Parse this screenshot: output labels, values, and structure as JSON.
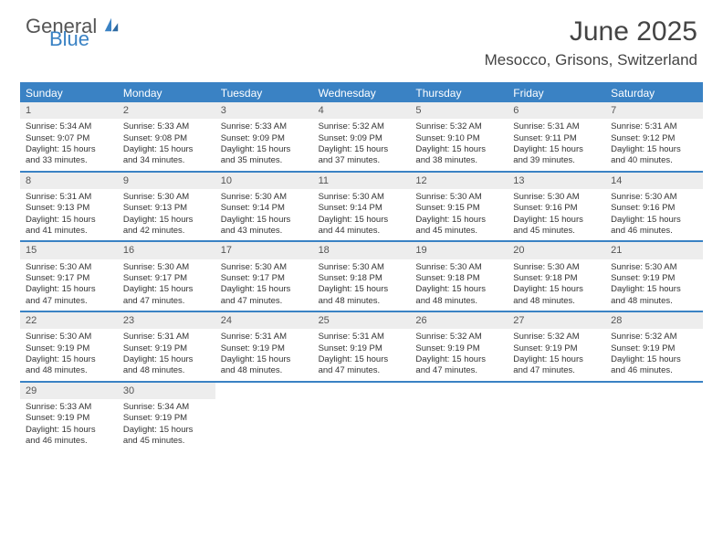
{
  "logo": {
    "general": "General",
    "blue": "Blue"
  },
  "title": "June 2025",
  "location": "Mesocco, Grisons, Switzerland",
  "colors": {
    "accent": "#3a82c4",
    "headerBg": "#3a82c4",
    "daynumBg": "#ededed",
    "text": "#333333",
    "titleText": "#444444"
  },
  "dayNames": [
    "Sunday",
    "Monday",
    "Tuesday",
    "Wednesday",
    "Thursday",
    "Friday",
    "Saturday"
  ],
  "weeks": [
    [
      {
        "n": "1",
        "sr": "5:34 AM",
        "ss": "9:07 PM",
        "dl": "15 hours and 33 minutes."
      },
      {
        "n": "2",
        "sr": "5:33 AM",
        "ss": "9:08 PM",
        "dl": "15 hours and 34 minutes."
      },
      {
        "n": "3",
        "sr": "5:33 AM",
        "ss": "9:09 PM",
        "dl": "15 hours and 35 minutes."
      },
      {
        "n": "4",
        "sr": "5:32 AM",
        "ss": "9:09 PM",
        "dl": "15 hours and 37 minutes."
      },
      {
        "n": "5",
        "sr": "5:32 AM",
        "ss": "9:10 PM",
        "dl": "15 hours and 38 minutes."
      },
      {
        "n": "6",
        "sr": "5:31 AM",
        "ss": "9:11 PM",
        "dl": "15 hours and 39 minutes."
      },
      {
        "n": "7",
        "sr": "5:31 AM",
        "ss": "9:12 PM",
        "dl": "15 hours and 40 minutes."
      }
    ],
    [
      {
        "n": "8",
        "sr": "5:31 AM",
        "ss": "9:13 PM",
        "dl": "15 hours and 41 minutes."
      },
      {
        "n": "9",
        "sr": "5:30 AM",
        "ss": "9:13 PM",
        "dl": "15 hours and 42 minutes."
      },
      {
        "n": "10",
        "sr": "5:30 AM",
        "ss": "9:14 PM",
        "dl": "15 hours and 43 minutes."
      },
      {
        "n": "11",
        "sr": "5:30 AM",
        "ss": "9:14 PM",
        "dl": "15 hours and 44 minutes."
      },
      {
        "n": "12",
        "sr": "5:30 AM",
        "ss": "9:15 PM",
        "dl": "15 hours and 45 minutes."
      },
      {
        "n": "13",
        "sr": "5:30 AM",
        "ss": "9:16 PM",
        "dl": "15 hours and 45 minutes."
      },
      {
        "n": "14",
        "sr": "5:30 AM",
        "ss": "9:16 PM",
        "dl": "15 hours and 46 minutes."
      }
    ],
    [
      {
        "n": "15",
        "sr": "5:30 AM",
        "ss": "9:17 PM",
        "dl": "15 hours and 47 minutes."
      },
      {
        "n": "16",
        "sr": "5:30 AM",
        "ss": "9:17 PM",
        "dl": "15 hours and 47 minutes."
      },
      {
        "n": "17",
        "sr": "5:30 AM",
        "ss": "9:17 PM",
        "dl": "15 hours and 47 minutes."
      },
      {
        "n": "18",
        "sr": "5:30 AM",
        "ss": "9:18 PM",
        "dl": "15 hours and 48 minutes."
      },
      {
        "n": "19",
        "sr": "5:30 AM",
        "ss": "9:18 PM",
        "dl": "15 hours and 48 minutes."
      },
      {
        "n": "20",
        "sr": "5:30 AM",
        "ss": "9:18 PM",
        "dl": "15 hours and 48 minutes."
      },
      {
        "n": "21",
        "sr": "5:30 AM",
        "ss": "9:19 PM",
        "dl": "15 hours and 48 minutes."
      }
    ],
    [
      {
        "n": "22",
        "sr": "5:30 AM",
        "ss": "9:19 PM",
        "dl": "15 hours and 48 minutes."
      },
      {
        "n": "23",
        "sr": "5:31 AM",
        "ss": "9:19 PM",
        "dl": "15 hours and 48 minutes."
      },
      {
        "n": "24",
        "sr": "5:31 AM",
        "ss": "9:19 PM",
        "dl": "15 hours and 48 minutes."
      },
      {
        "n": "25",
        "sr": "5:31 AM",
        "ss": "9:19 PM",
        "dl": "15 hours and 47 minutes."
      },
      {
        "n": "26",
        "sr": "5:32 AM",
        "ss": "9:19 PM",
        "dl": "15 hours and 47 minutes."
      },
      {
        "n": "27",
        "sr": "5:32 AM",
        "ss": "9:19 PM",
        "dl": "15 hours and 47 minutes."
      },
      {
        "n": "28",
        "sr": "5:32 AM",
        "ss": "9:19 PM",
        "dl": "15 hours and 46 minutes."
      }
    ],
    [
      {
        "n": "29",
        "sr": "5:33 AM",
        "ss": "9:19 PM",
        "dl": "15 hours and 46 minutes."
      },
      {
        "n": "30",
        "sr": "5:34 AM",
        "ss": "9:19 PM",
        "dl": "15 hours and 45 minutes."
      },
      null,
      null,
      null,
      null,
      null
    ]
  ],
  "labels": {
    "sunrise": "Sunrise: ",
    "sunset": "Sunset: ",
    "daylight": "Daylight: "
  }
}
